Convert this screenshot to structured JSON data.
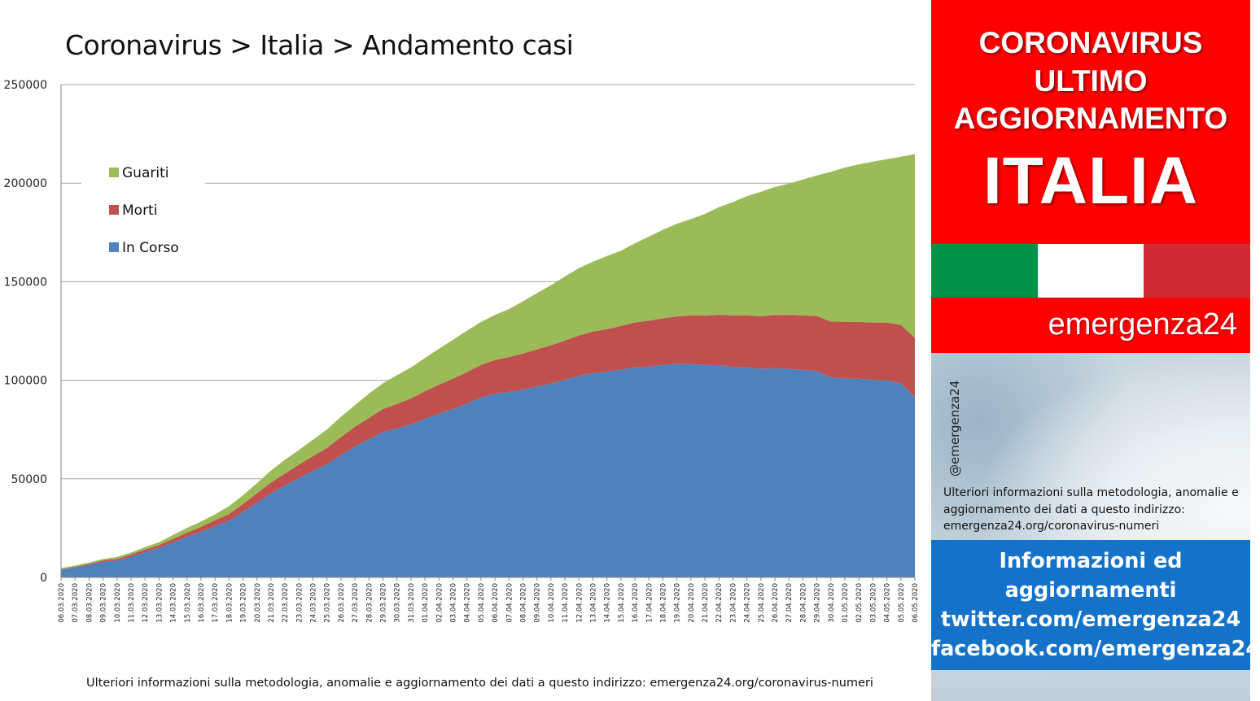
{
  "title": "Coronavirus > Italia > Andamento casi",
  "footnote": "Ulteriori informazioni sulla metodologia, anomalie e aggiornamento dei dati a questo indirizzo: emergenza24.org/coronavirus-numeri",
  "side": {
    "line1": "CORONAVIRUS",
    "line2": "ULTIMO",
    "line3": "AGGIORNAMENTO",
    "country": "ITALIA",
    "brand": "emergenza24",
    "handle": "@emergenza24",
    "note": "Ulteriori informazioni sulla metodologia, anomalie e aggiornamento dei dati a questo indirizzo: emergenza24.org/coronavirus-numeri",
    "info1": "Informazioni ed",
    "info2": "aggiornamenti",
    "info3": "twitter.com/emergenza24",
    "info4": "facebook.com/emergenza24"
  },
  "colors": {
    "guariti": "#9bbb59",
    "morti": "#c0504d",
    "in_corso": "#4f81bd",
    "red": "#ff0000",
    "flag_green": "#009246",
    "flag_white": "#ffffff",
    "flag_red": "#ce2b37",
    "blue_box": "#1473c9"
  },
  "chart_data": {
    "type": "area",
    "stacked": true,
    "ylim": [
      0,
      250000
    ],
    "yticks": [
      0,
      50000,
      100000,
      150000,
      200000,
      250000
    ],
    "grid": true,
    "legend_position": "top-left",
    "categories": [
      "06.03.2020",
      "07.03.2020",
      "08.03.2020",
      "09.03.2020",
      "10.03.2020",
      "11.03.2020",
      "12.03.2020",
      "13.03.2020",
      "14.03.2020",
      "15.03.2020",
      "16.03.2020",
      "17.03.2020",
      "18.03.2020",
      "19.03.2020",
      "20.03.2020",
      "21.03.2020",
      "22.03.2020",
      "23.03.2020",
      "24.03.2020",
      "25.03.2020",
      "26.03.2020",
      "27.03.2020",
      "28.03.2020",
      "29.03.2020",
      "30.03.2020",
      "31.03.2020",
      "01.04.2020",
      "02.04.2020",
      "03.04.2020",
      "04.04.2020",
      "05.04.2020",
      "06.04.2020",
      "07.04.2020",
      "08.04.2020",
      "09.04.2020",
      "10.04.2020",
      "11.04.2020",
      "12.04.2020",
      "13.04.2020",
      "14.04.2020",
      "15.04.2020",
      "16.04.2020",
      "17.04.2020",
      "18.04.2020",
      "19.04.2020",
      "20.04.2020",
      "21.04.2020",
      "22.04.2020",
      "23.04.2020",
      "24.04.2020",
      "25.04.2020",
      "26.04.2020",
      "27.04.2020",
      "28.04.2020",
      "29.04.2020",
      "30.04.2020",
      "01.05.2020",
      "02.05.2020",
      "03.05.2020",
      "04.05.2020",
      "05.05.2020",
      "06.05.2020"
    ],
    "series": [
      {
        "name": "In Corso",
        "values": [
          3916,
          5061,
          6387,
          7985,
          8514,
          10590,
          12839,
          14955,
          17750,
          20603,
          23073,
          26062,
          28710,
          33190,
          37860,
          42681,
          46638,
          50418,
          54030,
          57521,
          62013,
          66414,
          70065,
          73880,
          75528,
          77635,
          80572,
          83049,
          85388,
          88274,
          91246,
          93187,
          94067,
          95262,
          96877,
          98273,
          100269,
          102253,
          103616,
          104291,
          105418,
          106607,
          106962,
          107771,
          108257,
          108237,
          107709,
          107699,
          106848,
          106527,
          105847,
          106103,
          105813,
          105205,
          104657,
          101551,
          100943,
          100704,
          100179,
          99980,
          98467,
          91528
        ]
      },
      {
        "name": "Morti",
        "values": [
          233,
          366,
          463,
          631,
          827,
          1016,
          1266,
          1441,
          1809,
          2158,
          2503,
          2978,
          3405,
          4032,
          4825,
          5476,
          6077,
          6820,
          7503,
          8165,
          9134,
          10023,
          10779,
          11591,
          12428,
          13155,
          13915,
          14681,
          15362,
          15887,
          16523,
          17127,
          17669,
          18279,
          18849,
          19468,
          19899,
          20465,
          21067,
          21645,
          22170,
          22745,
          23227,
          23660,
          24114,
          24648,
          25085,
          25549,
          25969,
          26384,
          26644,
          26977,
          27359,
          27682,
          27967,
          28236,
          28710,
          28884,
          29079,
          29315,
          29684,
          29958
        ]
      },
      {
        "name": "Guariti",
        "values": [
          523,
          589,
          622,
          724,
          1004,
          1045,
          1258,
          1439,
          1966,
          2335,
          2749,
          2941,
          4025,
          4440,
          5129,
          6072,
          7024,
          7432,
          8326,
          9362,
          10361,
          10950,
          12384,
          13030,
          14620,
          15729,
          16847,
          18278,
          19758,
          20996,
          21815,
          22837,
          24392,
          26491,
          28470,
          30455,
          32534,
          34211,
          35435,
          37130,
          38092,
          40164,
          42727,
          44927,
          47055,
          48877,
          51600,
          54543,
          57576,
          60498,
          63120,
          64928,
          66624,
          68941,
          71252,
          75945,
          78249,
          79914,
          81654,
          82879,
          85231,
          93245
        ]
      }
    ]
  }
}
